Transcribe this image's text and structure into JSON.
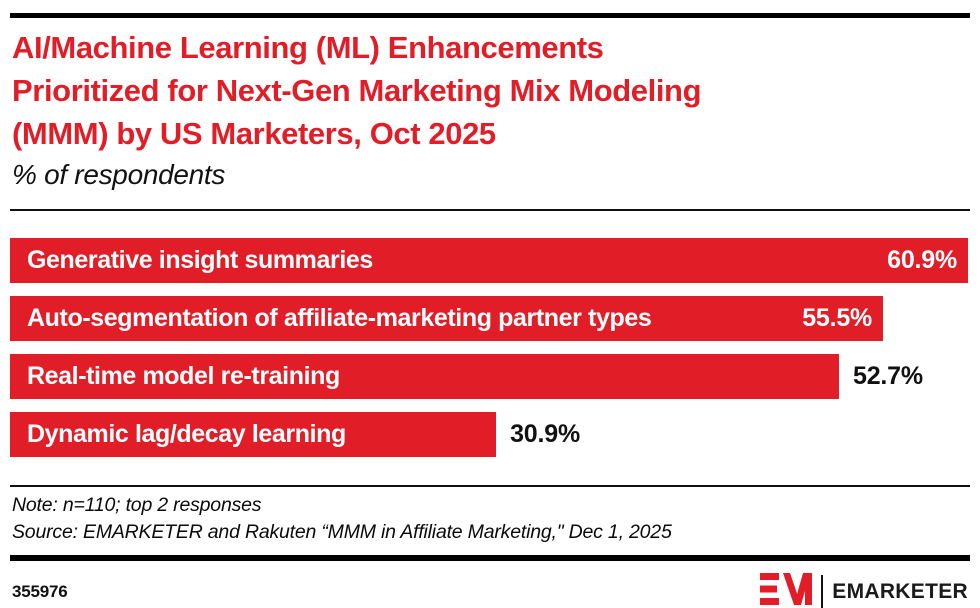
{
  "accent_red": "#e11e28",
  "header": {
    "title": "AI/Machine Learning (ML) Enhancements Prioritized for Next-Gen Marketing Mix Modeling (MMM) by US Marketers, Oct 2025",
    "title_lines": [
      "AI/Machine Learning (ML) Enhancements",
      "Prioritized for Next-Gen Marketing Mix Modeling",
      "(MMM) by US Marketers, Oct 2025"
    ],
    "subtitle": "% of respondents"
  },
  "chart_data": {
    "type": "bar",
    "orientation": "horizontal",
    "title": "AI/Machine Learning (ML) Enhancements Prioritized for Next-Gen Marketing Mix Modeling (MMM) by US Marketers, Oct 2025",
    "subtitle": "% of respondents",
    "unit": "%",
    "xlabel": "",
    "ylabel": "",
    "xlim": [
      0,
      61
    ],
    "grid": false,
    "bar_color": "#e11e28",
    "categories": [
      "Generative insight summaries",
      "Auto-segmentation of affiliate-marketing partner types",
      "Real-time model re-training",
      "Dynamic lag/decay learning"
    ],
    "values": [
      60.9,
      55.5,
      52.7,
      30.9
    ],
    "value_labels": [
      "60.9%",
      "55.5%",
      "52.7%",
      "30.9%"
    ],
    "value_label_position": [
      "inside",
      "inside",
      "outside",
      "outside"
    ]
  },
  "footer": {
    "note": "Note: n=110; top 2 responses",
    "source": "Source: EMARKETER and Rakuten “MMM in Affiliate Marketing,\" Dec 1, 2025",
    "chart_id": "355976",
    "brand": "EMARKETER",
    "logo_icon": "emarketer-em-monogram"
  }
}
